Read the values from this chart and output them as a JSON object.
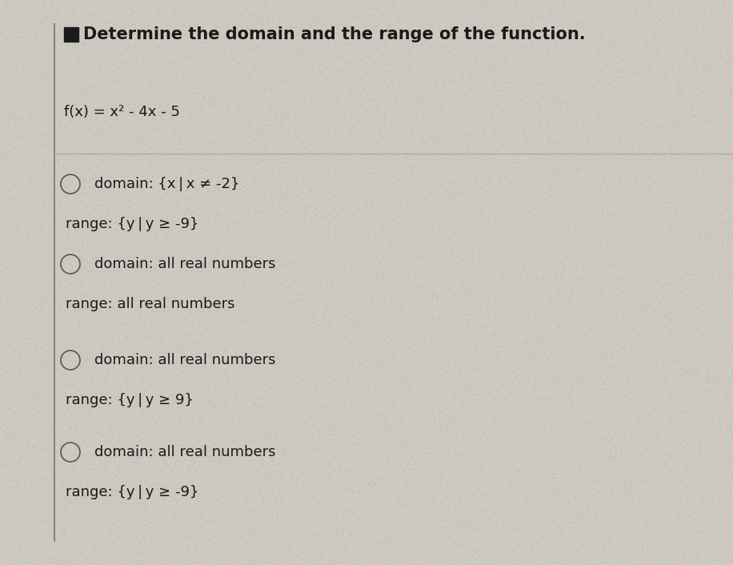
{
  "background_color": "#cdc8c0",
  "panel_color": "#cdc8c0",
  "title_bg_color": "#c8c3bb",
  "border_color": "#b0aba3",
  "title": "Determine the domain and the range of the function.",
  "title_fontsize": 15,
  "function_text": "f(x) = x² - 4x - 5",
  "function_fontsize": 13,
  "options": [
    {
      "lines": [
        "domain: {x | x ≠ -2}",
        "range: {y | y ≥ -9}"
      ]
    },
    {
      "lines": [
        "domain: all real numbers",
        "range: all real numbers"
      ]
    },
    {
      "lines": [
        "domain: all real numbers",
        "range: {y | y ≥ 9}"
      ]
    },
    {
      "lines": [
        "domain: all real numbers",
        "range: {y | y ≥ -9}"
      ]
    }
  ],
  "option_fontsize": 13,
  "text_color": "#1a1a1a",
  "radio_color": "#555555",
  "separator_color": "#b0aba3",
  "left_border_color": "#888480",
  "bullet_color": "#1a1a1a"
}
